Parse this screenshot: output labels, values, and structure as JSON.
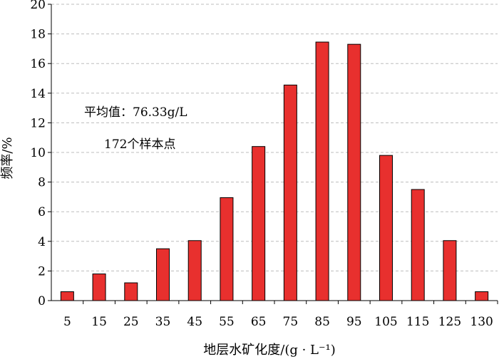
{
  "chart_data": {
    "type": "bar",
    "categories": [
      "5",
      "15",
      "25",
      "35",
      "45",
      "55",
      "65",
      "75",
      "85",
      "95",
      "105",
      "115",
      "125",
      "130"
    ],
    "values": [
      0.6,
      1.8,
      1.2,
      3.5,
      4.05,
      6.95,
      10.4,
      14.55,
      17.45,
      17.3,
      9.8,
      7.5,
      4.05,
      0.6
    ],
    "ylim": [
      0,
      20
    ],
    "yticks": [
      0,
      2,
      4,
      6,
      8,
      10,
      12,
      14,
      16,
      18,
      20
    ],
    "ylabel": "频率/%",
    "xlabel": "地层水矿化度/(g · L⁻¹)",
    "annotations": [
      "平均值：76.33g/L",
      "172个样本点"
    ],
    "bar_color": "#e8302e",
    "grid": true,
    "legend": "none"
  }
}
